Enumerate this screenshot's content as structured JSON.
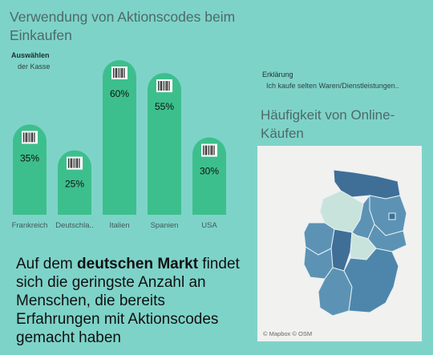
{
  "header": {
    "title": "Verwendung von Aktionscodes beim Einkaufen"
  },
  "filter": {
    "label": "Auswählen",
    "value": "der Kasse"
  },
  "legend": {
    "label": "Erklärung",
    "value": "Ich kaufe selten Waren/Dienstleistungen.."
  },
  "map": {
    "title": "Häufigkeit von Online-Käufen",
    "credit": "© Mapbox © OSM"
  },
  "statement": {
    "pre": "Auf dem ",
    "bold": "deutschen Markt",
    "post": " findet sich die geringste Anzahl an Menschen, die bereits Erfahrungen mit Aktionscodes gemacht haben"
  },
  "chart_data": {
    "type": "bar",
    "categories": [
      "Frankreich",
      "Deutschla..",
      "Italien",
      "Spanien",
      "USA"
    ],
    "values": [
      35,
      25,
      60,
      55,
      30
    ],
    "value_labels": [
      "35%",
      "25%",
      "60%",
      "55%",
      "30%"
    ],
    "ylim": [
      0,
      60
    ],
    "grid": false,
    "bar_color": "#3dbf8d",
    "icon": "barcode-icon"
  },
  "colors": {
    "background": "#7ed3c9",
    "bar": "#3dbf8d",
    "map_dark": "#3f6f97",
    "map_mid": "#5c93b4",
    "map_light": "#c7e3dc"
  }
}
